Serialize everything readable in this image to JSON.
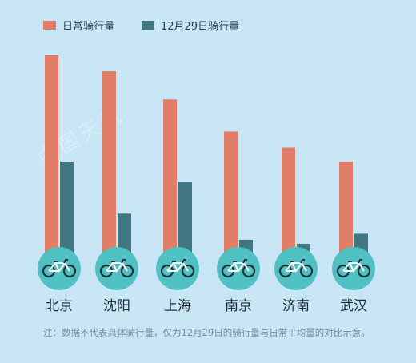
{
  "legend": {
    "daily_label": "日常骑行量",
    "dec29_label": "12月29日骑行量"
  },
  "colors": {
    "daily": "#e27d68",
    "dec29": "#3f7880",
    "circle": "#4fc1c3",
    "bike": "#1f2f34",
    "bike_frame": "#ffffff",
    "background": "#c9e6f6"
  },
  "watermark": "中国天气",
  "note": "注：数据不代表具体骑行量，仅为12月29日的骑行量与日常平均量的对比示意。",
  "chart_data": {
    "type": "bar",
    "categories": [
      "北京",
      "沈阳",
      "上海",
      "南京",
      "济南",
      "武汉"
    ],
    "series": [
      {
        "name": "日常骑行量",
        "values": [
          100,
          92,
          78,
          62,
          54,
          47
        ]
      },
      {
        "name": "12月29日骑行量",
        "values": [
          47,
          21,
          37,
          8,
          6,
          11
        ]
      }
    ],
    "ylim": [
      0,
      100
    ],
    "grid": false,
    "legend_position": "top-left",
    "icon": "bicycle-icon"
  }
}
